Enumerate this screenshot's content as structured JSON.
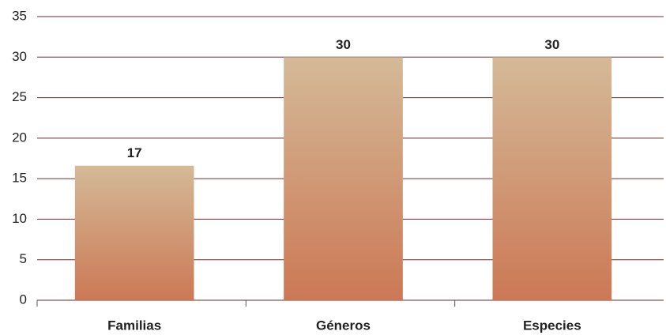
{
  "chart_data": {
    "type": "bar",
    "categories": [
      "Familias",
      "Géneros",
      "Especies"
    ],
    "values": [
      16.6,
      30,
      30
    ],
    "value_labels": [
      "17",
      "30",
      "30"
    ],
    "color_top": "#d4ba98",
    "color_bottom": "#cc7855",
    "ylim": [
      0,
      35
    ],
    "yticks": [
      0,
      5,
      10,
      15,
      20,
      25,
      30,
      35
    ],
    "grid": true,
    "grid_color": "#6e2b2b"
  }
}
